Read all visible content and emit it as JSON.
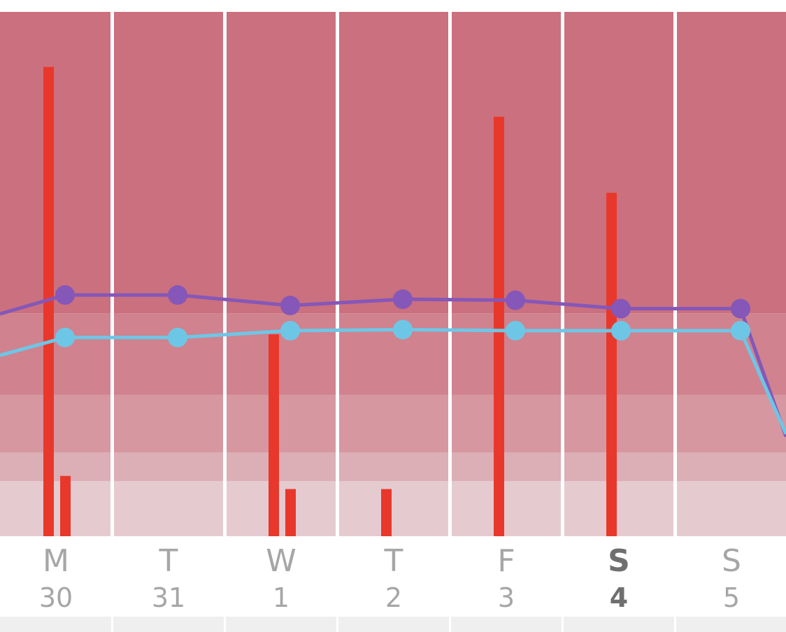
{
  "colors": {
    "band_top": "#cb707e",
    "band_2": "#d0828e",
    "band_3": "#d697a1",
    "band_4": "#dcaeb5",
    "band_5": "#e5cbd0",
    "bar": "#e8382b",
    "line_purple": "#8557b8",
    "line_blue": "#6ec6e6",
    "separator": "#ffffff",
    "footer": "#efefef"
  },
  "chart_data": {
    "type": "bar",
    "categories": [
      "M 30",
      "T 31",
      "W 1",
      "T 2",
      "F 3",
      "S 4",
      "S 5"
    ],
    "days": [
      {
        "letter": "M",
        "number": "30",
        "today": false
      },
      {
        "letter": "T",
        "number": "31",
        "today": false
      },
      {
        "letter": "W",
        "number": "1",
        "today": false
      },
      {
        "letter": "T",
        "number": "2",
        "today": false
      },
      {
        "letter": "F",
        "number": "3",
        "today": false
      },
      {
        "letter": "S",
        "number": "4",
        "today": true
      },
      {
        "letter": "S",
        "number": "5",
        "today": false
      }
    ],
    "ylim": [
      0,
      100
    ],
    "bands": [
      {
        "from": 0,
        "to": 10.5
      },
      {
        "from": 10.5,
        "to": 16
      },
      {
        "from": 16,
        "to": 27
      },
      {
        "from": 27,
        "to": 42.5
      },
      {
        "from": 42.5,
        "to": 100
      }
    ],
    "bars": [
      {
        "day": 0,
        "slot": 0,
        "value": 89.5
      },
      {
        "day": 0,
        "slot": 1,
        "value": 11.5
      },
      {
        "day": 2,
        "slot": 0,
        "value": 38.5
      },
      {
        "day": 2,
        "slot": 1,
        "value": 9
      },
      {
        "day": 3,
        "slot": 0,
        "value": 9
      },
      {
        "day": 4,
        "slot": 0,
        "value": 80
      },
      {
        "day": 5,
        "slot": 0,
        "value": 65.5
      }
    ],
    "series": [
      {
        "values": [
          46,
          46,
          44,
          45.2,
          45,
          43.4,
          43.4
        ],
        "leading": 42.4,
        "trailing": 19
      },
      {
        "values": [
          37.9,
          37.9,
          39.2,
          39.4,
          39.2,
          39.2,
          39.2
        ],
        "leading": 34.5,
        "trailing": 19.5
      }
    ],
    "grid": false,
    "legend": "none"
  }
}
